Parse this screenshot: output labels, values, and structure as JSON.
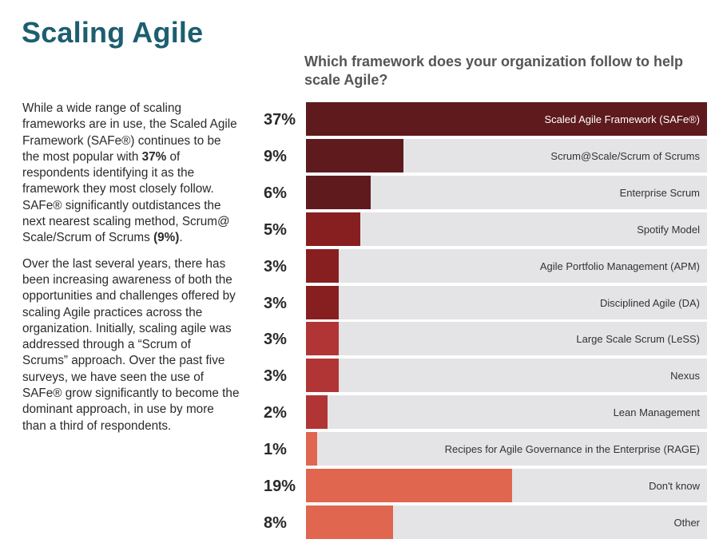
{
  "header": {
    "title": "Scaling Agile"
  },
  "body": {
    "p1_a": "While a wide range of scaling frameworks are in use, the Scaled Agile Framework (SAFe®) continues to be the most popular with ",
    "p1_b": "37%",
    "p1_c": " of respondents identifying it as the framework they most closely follow. SAFe® significantly outdistances the next nearest scaling method, Scrum@ Scale/Scrum of Scrums ",
    "p1_d": "(9%)",
    "p1_e": ".",
    "p2": "Over the last several years, there has been increasing awareness of both the opportunities and challenges offered by scaling Agile practices across the organization. Initially, scaling agile was addressed through a “Scrum of Scrums” approach. Over the past five surveys, we have seen the use of SAFe® grow significantly to become the dominant approach, in use by more than a third of respondents."
  },
  "chart_data": {
    "type": "bar",
    "orientation": "horizontal",
    "title": "Which framework does your organization follow to help scale Agile?",
    "xlabel": "",
    "ylabel": "",
    "xlim": [
      0,
      37
    ],
    "grid": false,
    "unit": "%",
    "categories": [
      "Scaled Agile Framework (SAFe®)",
      "Scrum@Scale/Scrum of Scrums",
      "Enterprise Scrum",
      "Spotify Model",
      "Agile Portfolio Management (APM)",
      "Disciplined Agile (DA)",
      "Large Scale Scrum (LeSS)",
      "Nexus",
      "Lean Management",
      "Recipes for Agile Governance in the Enterprise (RAGE)",
      "Don't know",
      "Other"
    ],
    "values": [
      37,
      9,
      6,
      5,
      3,
      3,
      3,
      3,
      2,
      1,
      19,
      8
    ],
    "labels": [
      "37%",
      "9%",
      "6%",
      "5%",
      "3%",
      "3%",
      "3%",
      "3%",
      "2%",
      "1%",
      "19%",
      "8%"
    ],
    "colors": [
      "#5e1a1d",
      "#5e1a1d",
      "#5e1a1d",
      "#871f21",
      "#871f21",
      "#871f21",
      "#b23535",
      "#b23535",
      "#b23535",
      "#e06650",
      "#e06650",
      "#e06650"
    ],
    "track_color": "#e4e4e6"
  }
}
